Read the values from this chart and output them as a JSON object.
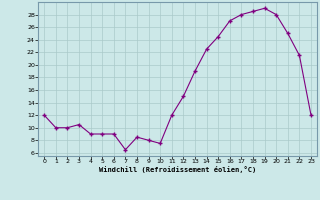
{
  "x": [
    0,
    1,
    2,
    3,
    4,
    5,
    6,
    7,
    8,
    9,
    10,
    11,
    12,
    13,
    14,
    15,
    16,
    17,
    18,
    19,
    20,
    21,
    22,
    23
  ],
  "y": [
    12,
    10,
    10,
    10.5,
    9,
    9,
    9,
    6.5,
    8.5,
    8,
    7.5,
    12,
    15,
    19,
    22.5,
    24.5,
    27,
    28,
    28.5,
    29,
    28,
    25,
    21.5,
    12
  ],
  "line_color": "#800080",
  "marker_color": "#800080",
  "bg_color": "#cce8e8",
  "grid_color": "#aacaca",
  "xlabel": "Windchill (Refroidissement éolien,°C)",
  "xlim": [
    -0.5,
    23.5
  ],
  "ylim": [
    5.5,
    30
  ],
  "yticks": [
    6,
    8,
    10,
    12,
    14,
    16,
    18,
    20,
    22,
    24,
    26,
    28
  ],
  "xticks": [
    0,
    1,
    2,
    3,
    4,
    5,
    6,
    7,
    8,
    9,
    10,
    11,
    12,
    13,
    14,
    15,
    16,
    17,
    18,
    19,
    20,
    21,
    22,
    23
  ]
}
